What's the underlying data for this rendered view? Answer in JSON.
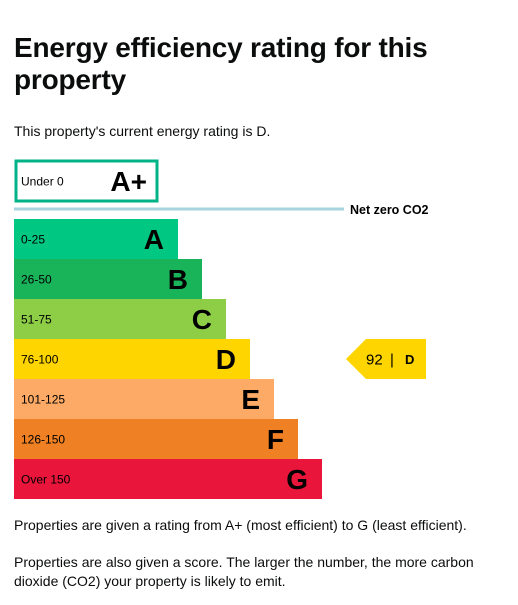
{
  "page": {
    "title": "Energy efficiency rating for this property",
    "current_rating_text": "This property's current energy rating is D.",
    "footnote_1": "Properties are given a rating from A+ (most efficient) to G (least efficient).",
    "footnote_2": "Properties are also given a score. The larger the number, the more carbon dioxide (CO2) your property is likely to emit."
  },
  "chart_data": {
    "type": "bar",
    "title": "",
    "categories": [
      "A+",
      "A",
      "B",
      "C",
      "D",
      "E",
      "F",
      "G"
    ],
    "bands": [
      {
        "letter": "A+",
        "range": "Under 0",
        "color": "#ffffff",
        "border": "#00b386",
        "outlined": true
      },
      {
        "letter": "A",
        "range": "0-25",
        "color": "#00c781",
        "outlined": false
      },
      {
        "letter": "B",
        "range": "26-50",
        "color": "#19b459",
        "outlined": false
      },
      {
        "letter": "C",
        "range": "51-75",
        "color": "#8dce46",
        "outlined": false
      },
      {
        "letter": "D",
        "range": "76-100",
        "color": "#ffd500",
        "outlined": false
      },
      {
        "letter": "E",
        "range": "101-125",
        "color": "#fcaa65",
        "outlined": false
      },
      {
        "letter": "F",
        "range": "126-150",
        "color": "#ef8023",
        "outlined": false
      },
      {
        "letter": "G",
        "range": "Over 150",
        "color": "#e9153b",
        "outlined": false
      }
    ],
    "net_zero": {
      "label": "Net zero CO2",
      "color": "#a7d4de"
    },
    "current_score": {
      "value": "92",
      "separator": "|",
      "letter": "D",
      "color": "#ffd500"
    }
  }
}
